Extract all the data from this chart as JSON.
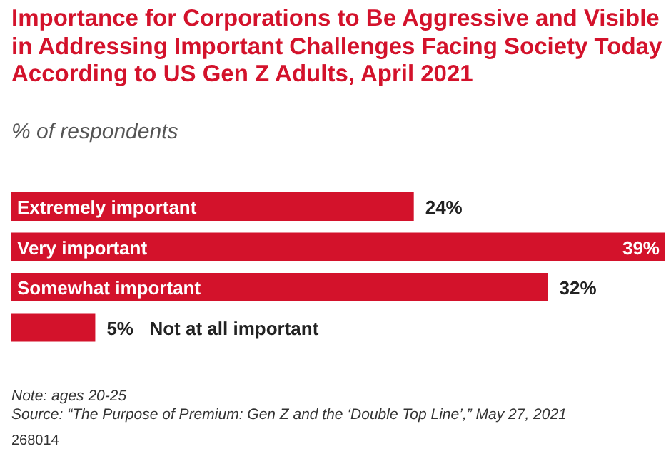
{
  "chart_data": {
    "type": "bar",
    "orientation": "horizontal",
    "title": "Importance for Corporations to Be Aggressive and Visible in Addressing Important Challenges Facing Society Today According to US Gen Z Adults, April 2021",
    "subtitle": "% of respondents",
    "categories": [
      "Extremely important",
      "Very important",
      "Somewhat important",
      "Not at all important"
    ],
    "values": [
      24,
      39,
      32,
      5
    ],
    "value_labels": [
      "24%",
      "39%",
      "32%",
      "5%"
    ],
    "color": "#d3122b",
    "annotations": [
      "Note: ages 20-25",
      "Source: “The Purpose of Premium: Gen Z and the ‘Double Top Line’,” May 27, 2021",
      "268014"
    ]
  }
}
